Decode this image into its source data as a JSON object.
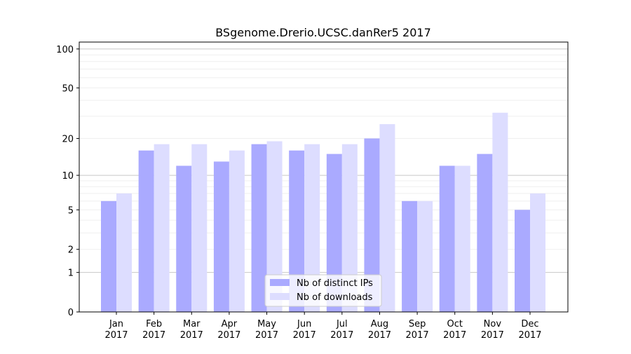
{
  "chart_data": {
    "type": "bar",
    "title": "BSgenome.Drerio.UCSC.danRer5 2017",
    "xlabel": "",
    "ylabel": "",
    "yscale": "log(1+y)",
    "ylim": [
      0,
      113
    ],
    "yticks": [
      0,
      1,
      2,
      5,
      10,
      20,
      50,
      100
    ],
    "grid": true,
    "legend_position": "bottom-center",
    "categories": [
      "Jan\n2017",
      "Feb\n2017",
      "Mar\n2017",
      "Apr\n2017",
      "May\n2017",
      "Jun\n2017",
      "Jul\n2017",
      "Aug\n2017",
      "Sep\n2017",
      "Oct\n2017",
      "Nov\n2017",
      "Dec\n2017"
    ],
    "series": [
      {
        "name": "Nb of distinct IPs",
        "color": "#aaaaff",
        "values": [
          6,
          16,
          12,
          13,
          18,
          16,
          15,
          20,
          6,
          12,
          15,
          5
        ]
      },
      {
        "name": "Nb of downloads",
        "color": "#ddddff",
        "values": [
          7,
          18,
          18,
          16,
          19,
          18,
          18,
          26,
          6,
          12,
          32,
          7
        ]
      }
    ]
  }
}
